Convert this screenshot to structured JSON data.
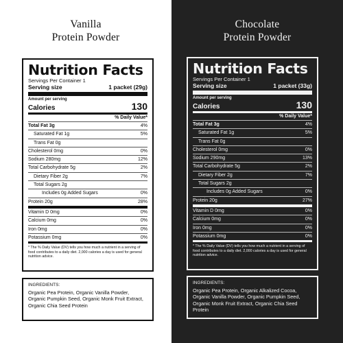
{
  "left": {
    "title_line1": "Vanilla",
    "title_line2": "Protein Powder",
    "nf_title": "Nutrition Facts",
    "servings_per_container": "Servings Per Container 1",
    "serving_size_label": "Serving size",
    "serving_size_value": "1 packet (29g)",
    "amount_per_serving": "Amount per serving",
    "calories_label": "Calories",
    "calories_value": "130",
    "dv_header": "% Daily Value*",
    "nutrients": [
      {
        "label": "Total Fat 3g",
        "dv": "4%"
      },
      {
        "label": "Saturated Fat 1g",
        "dv": "5%"
      },
      {
        "label": "Trans Fat 0g",
        "dv": ""
      },
      {
        "label": "Cholesterol 0mg",
        "dv": "0%"
      },
      {
        "label": "Sodium 280mg",
        "dv": "12%"
      },
      {
        "label": "Total Carbohydrate 5g",
        "dv": "2%"
      },
      {
        "label": "Dietary Fiber 2g",
        "dv": "7%"
      },
      {
        "label": "Total Sugars 2g",
        "dv": ""
      },
      {
        "label": "Includes 0g Added Sugars",
        "dv": "0%"
      },
      {
        "label": "Protein 20g",
        "dv": "28%"
      },
      {
        "label": "Vitamin D 0mg",
        "dv": "0%"
      },
      {
        "label": "Calcium 0mg",
        "dv": "0%"
      },
      {
        "label": "Iron 0mg",
        "dv": "0%"
      },
      {
        "label": "Potassium 0mg",
        "dv": "0%"
      }
    ],
    "footnote": "* The % Daily Value (DV) tells you how much a nutrient in a serving of food contributes to a daily diet. 2,000 calories a day is used for general nutrition advice.",
    "ingredients_title": "INGREDIENTS:",
    "ingredients": "Organic Pea Protein, Organic Vanilla Powder, Organic Pumpkin Seed, Organic Monk Fruit Extract, Organic Chia Seed Protein"
  },
  "right": {
    "title_line1": "Chocolate",
    "title_line2": "Protein Powder",
    "nf_title": "Nutrition Facts",
    "servings_per_container": "Servings Per Container 1",
    "serving_size_label": "Serving size",
    "serving_size_value": "1 packet (33g)",
    "amount_per_serving": "Amount per serving",
    "calories_label": "Calories",
    "calories_value": "130",
    "dv_header": "% Daily Value*",
    "nutrients": [
      {
        "label": "Total Fat 3g",
        "dv": "4%"
      },
      {
        "label": "Saturated Fat 1g",
        "dv": "5%"
      },
      {
        "label": "Trans Fat 0g",
        "dv": ""
      },
      {
        "label": "Cholesterol 0mg",
        "dv": "0%"
      },
      {
        "label": "Sodium 290mg",
        "dv": "13%"
      },
      {
        "label": "Total Carbohydrate 5g",
        "dv": "2%"
      },
      {
        "label": "Dietary Fiber 2g",
        "dv": "7%"
      },
      {
        "label": "Total Sugars 2g",
        "dv": ""
      },
      {
        "label": "Includes 0g Added Sugars",
        "dv": "0%"
      },
      {
        "label": "Protein 20g",
        "dv": "27%"
      },
      {
        "label": "Vitamin D 0mg",
        "dv": "0%"
      },
      {
        "label": "Calcium 0mg",
        "dv": "0%"
      },
      {
        "label": "Iron 0mg",
        "dv": "0%"
      },
      {
        "label": "Potassium 0mg",
        "dv": "0%"
      }
    ],
    "footnote": "* The % Daily Value (DV) tells you how much a nutrient in a serving of food contributes to a daily diet. 2,000 calories a day is used for general nutrition advice.",
    "ingredients_title": "INGREDIENTS:",
    "ingredients": "Organic Pea Protein, Organic Alkalized Cocoa, Organic Vanilla Powder, Organic Pumpkin Seed, Organic Monk Fruit Extract, Organic Chia Seed Protein"
  },
  "colors": {
    "left_background": "#ffffff",
    "right_background": "#222222"
  }
}
